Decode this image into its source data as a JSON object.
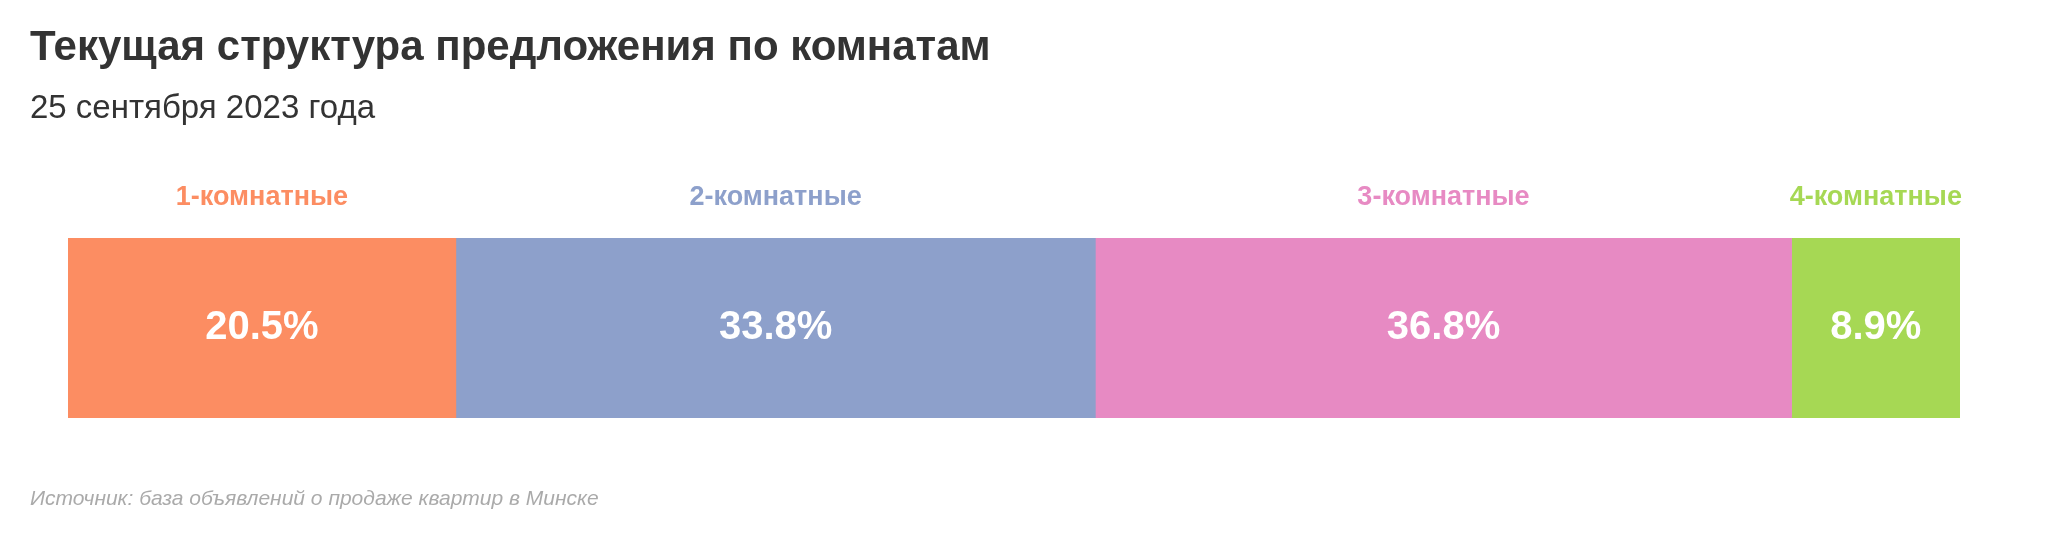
{
  "chart_data": {
    "type": "bar",
    "orientation": "horizontal",
    "stacked": true,
    "title": "Текущая структура предложения по комнатам",
    "subtitle": "25 сентября 2023 года",
    "categories": [
      null
    ],
    "series": [
      {
        "name": "1-комнатные",
        "color": "#fc8d62",
        "values": [
          20.5
        ],
        "value_labels": [
          "20.5%"
        ]
      },
      {
        "name": "2-комнатные",
        "color": "#8da0cb",
        "values": [
          33.8
        ],
        "value_labels": [
          "33.8%"
        ]
      },
      {
        "name": "3-комнатные",
        "color": "#e78ac3",
        "values": [
          36.8
        ],
        "value_labels": [
          "36.8%"
        ]
      },
      {
        "name": "4-комнатные",
        "color": "#a6d854",
        "values": [
          8.9
        ],
        "value_labels": [
          "8.9%"
        ]
      }
    ],
    "annotations": [
      "Источник: база объявлений о продаже квартир в Минске"
    ]
  }
}
